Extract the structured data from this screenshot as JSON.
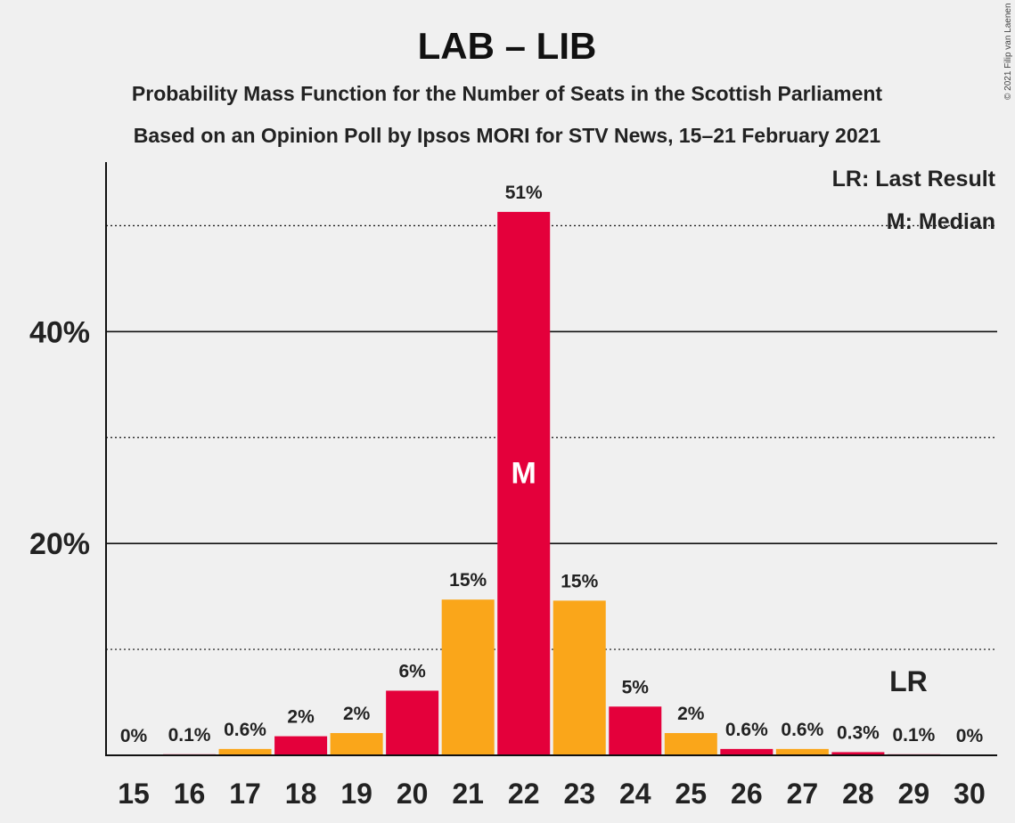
{
  "chart_data": {
    "type": "bar",
    "title": "LAB – LIB",
    "subtitle_lines": [
      "Probability Mass Function for the Number of Seats in the Scottish Parliament",
      "Based on an Opinion Poll by Ipsos MORI for STV News, 15–21 February 2021"
    ],
    "copyright": "© 2021 Filip van Laenen",
    "categories": [
      "15",
      "16",
      "17",
      "18",
      "19",
      "20",
      "21",
      "22",
      "23",
      "24",
      "25",
      "26",
      "27",
      "28",
      "29",
      "30"
    ],
    "values": [
      0,
      0.1,
      0.6,
      1.8,
      2.1,
      6.1,
      14.7,
      51.3,
      14.6,
      4.6,
      2.1,
      0.6,
      0.6,
      0.3,
      0.1,
      0
    ],
    "labels": [
      "0%",
      "0.1%",
      "0.6%",
      "2%",
      "2%",
      "6%",
      "15%",
      "51%",
      "15%",
      "5%",
      "2%",
      "0.6%",
      "0.6%",
      "0.3%",
      "0.1%",
      "0%"
    ],
    "bar_colors": [
      "#e4003b",
      "#e4003b",
      "#faa61a",
      "#e4003b",
      "#faa61a",
      "#e4003b",
      "#faa61a",
      "#e4003b",
      "#faa61a",
      "#e4003b",
      "#faa61a",
      "#e4003b",
      "#faa61a",
      "#e4003b",
      "#e4003b",
      "#e4003b"
    ],
    "ylim": [
      0,
      56
    ],
    "y_ticks_major": [
      {
        "value": 20,
        "label": "20%"
      },
      {
        "value": 40,
        "label": "40%"
      }
    ],
    "y_ticks_minor": [
      10,
      30,
      50
    ],
    "median_seat": "22",
    "median_marker": "M",
    "last_result_seat": "29",
    "last_result_marker": "LR",
    "legend": [
      "LR: Last Result",
      "M: Median"
    ],
    "legend_position": "top-right",
    "grid": true,
    "xlabel": "",
    "ylabel": ""
  }
}
